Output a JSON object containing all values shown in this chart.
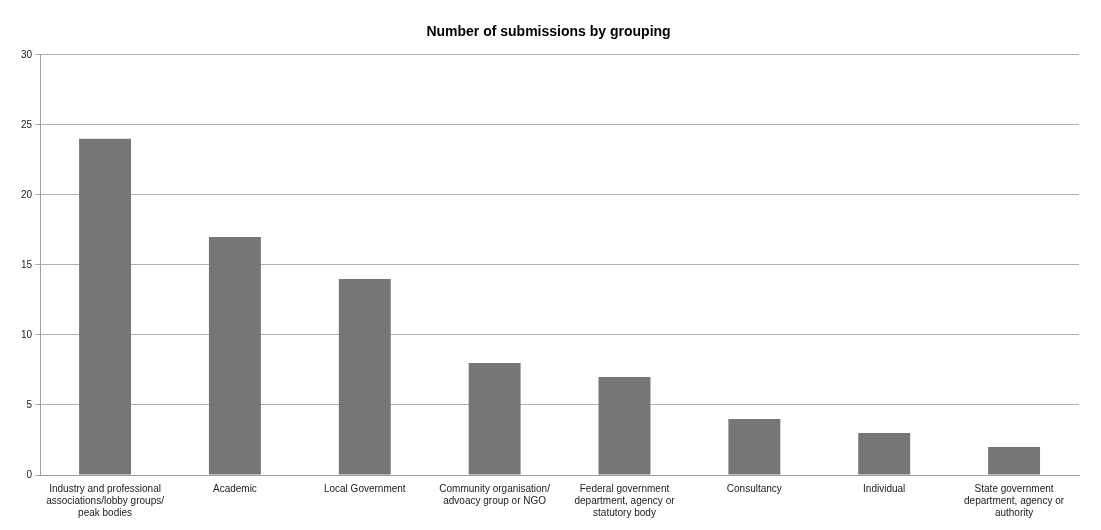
{
  "chart_data": {
    "type": "bar",
    "title": "Number of submissions by grouping",
    "categories": [
      "Industry and professional associations/lobby groups/ peak bodies",
      "Academic",
      "Local Government",
      "Community organisation/ advoacy group or NGO",
      "Federal government department, agency or statutory body",
      "Consultancy",
      "Individual",
      "State government department, agency or authority"
    ],
    "values": [
      24,
      17,
      14,
      8,
      7,
      4,
      3,
      2
    ],
    "color": "#767676",
    "ylim": [
      0,
      30
    ],
    "yticks": [
      0,
      5,
      10,
      15,
      20,
      25,
      30
    ],
    "grid": "y"
  }
}
